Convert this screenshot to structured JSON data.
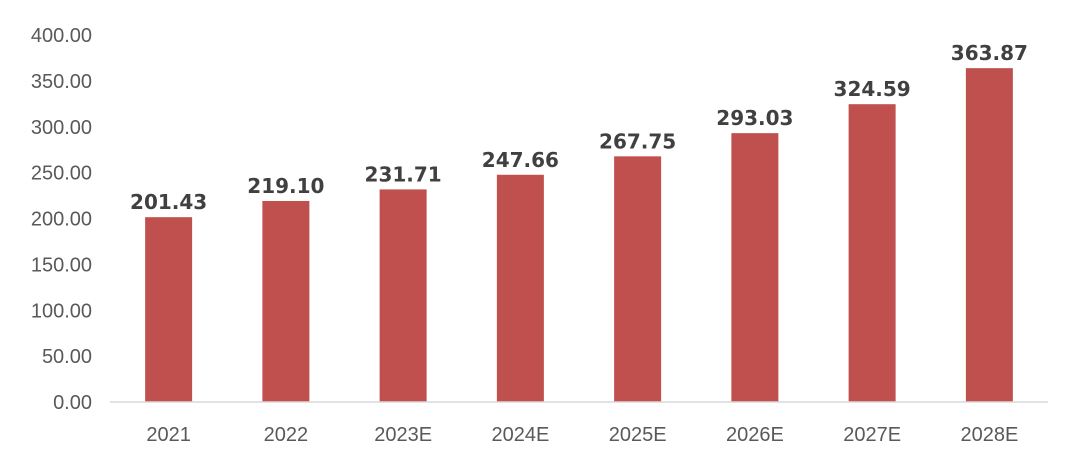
{
  "chart_data": {
    "type": "bar",
    "categories": [
      "2021",
      "2022",
      "2023E",
      "2024E",
      "2025E",
      "2026E",
      "2027E",
      "2028E"
    ],
    "values": [
      201.43,
      219.1,
      231.71,
      247.66,
      267.75,
      293.03,
      324.59,
      363.87
    ],
    "value_labels": [
      "201.43",
      "219.10",
      "231.71",
      "247.66",
      "267.75",
      "293.03",
      "324.59",
      "363.87"
    ],
    "y_ticks": [
      "0.00",
      "50.00",
      "100.00",
      "150.00",
      "200.00",
      "250.00",
      "300.00",
      "350.00",
      "400.00"
    ],
    "ylim": [
      0,
      400
    ],
    "title": "",
    "xlabel": "",
    "ylabel": "",
    "grid": false,
    "legend": "none",
    "bar_color": "#c0504d"
  }
}
